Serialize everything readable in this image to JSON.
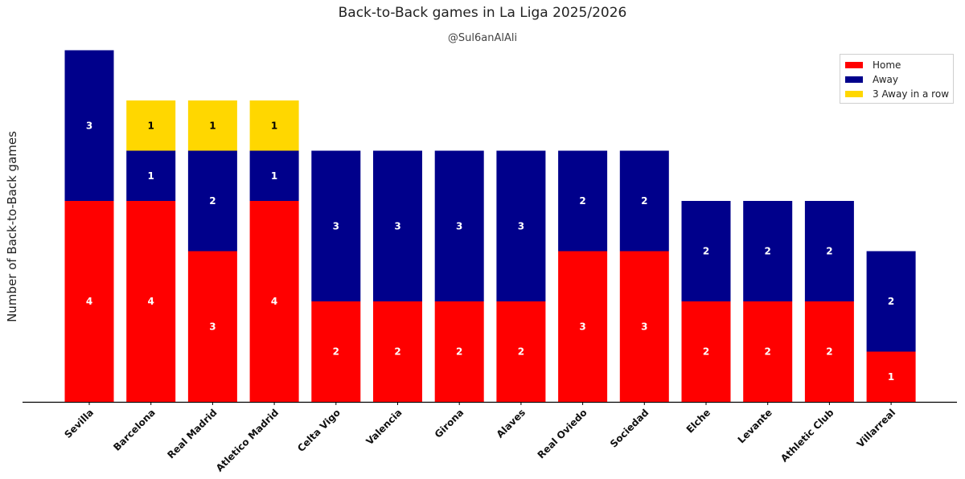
{
  "title": "Back-to-Back games in La Liga 2025/2026",
  "subtitle": "@Sul6anAlAli",
  "chart_data": {
    "type": "bar",
    "stacked": true,
    "title": "Back-to-Back games in La Liga 2025/2026",
    "xlabel": "",
    "ylabel": "Number of Back-to-Back games",
    "ylim": [
      0,
      7
    ],
    "grid": false,
    "legend_position": "top-right",
    "categories": [
      "Sevilla",
      "Barcelona",
      "Real Madrid",
      "Atletico Madrid",
      "Celta Vigo",
      "Valencia",
      "Girona",
      "Alaves",
      "Real Oviedo",
      "Sociedad",
      "Elche",
      "Levante",
      "Athletic Club",
      "Villarreal"
    ],
    "series": [
      {
        "name": "Home",
        "color": "#ff0000",
        "label_color": "#ffffff",
        "values": [
          4,
          4,
          3,
          4,
          2,
          2,
          2,
          2,
          3,
          3,
          2,
          2,
          2,
          1
        ]
      },
      {
        "name": "Away",
        "color": "#00008b",
        "label_color": "#ffffff",
        "values": [
          3,
          1,
          2,
          1,
          3,
          3,
          3,
          3,
          2,
          2,
          2,
          2,
          2,
          2
        ]
      },
      {
        "name": "3 Away in a row",
        "color": "#ffd700",
        "label_color": "#000000",
        "values": [
          0,
          1,
          1,
          1,
          0,
          0,
          0,
          0,
          0,
          0,
          0,
          0,
          0,
          0
        ]
      }
    ]
  }
}
